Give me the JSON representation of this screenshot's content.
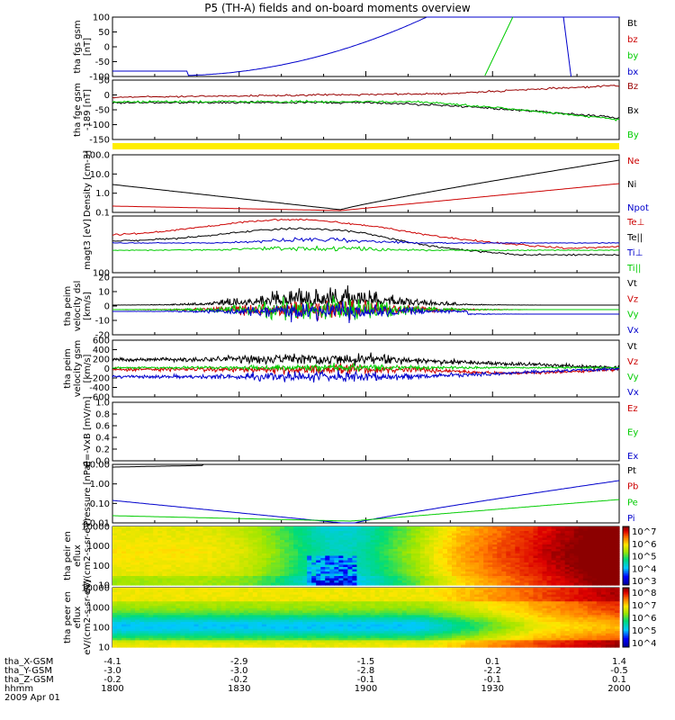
{
  "title": "P5 (TH-A) fields and on-board moments overview",
  "colors": {
    "black": "#000000",
    "red": "#cc0000",
    "green": "#00cc00",
    "blue": "#0000cc",
    "darkred": "#990000",
    "yellow": "#ffee00"
  },
  "chart_data": [
    {
      "type": "line",
      "ylabel": "tha fgs gsm [nT]",
      "yticks": [
        "100",
        "50",
        "0",
        "-50",
        "-100"
      ],
      "ylim": [
        -100,
        100
      ],
      "legend": [
        {
          "name": "Bt",
          "color": "black"
        },
        {
          "name": "bz",
          "color": "red"
        },
        {
          "name": "by",
          "color": "green"
        },
        {
          "name": "bx",
          "color": "blue"
        }
      ]
    },
    {
      "type": "line",
      "ylabel": "tha fge gsm -189 [nT]",
      "yticks": [
        "50",
        "0",
        "-50",
        "-100",
        "-150"
      ],
      "ylim": [
        -180,
        60
      ],
      "legend": [
        {
          "name": "Bz",
          "color": "darkred"
        },
        {
          "name": "Bx",
          "color": "black"
        },
        {
          "name": "By",
          "color": "green"
        }
      ]
    },
    {
      "type": "line",
      "ylabel": "Density [cm-3]",
      "yticks": [
        "100.0",
        "10.0",
        "1.0",
        "0.1"
      ],
      "log": true,
      "legend": [
        {
          "name": "Ne",
          "color": "red"
        },
        {
          "name": "Ni",
          "color": "black"
        },
        {
          "name": "Npot",
          "color": "blue"
        }
      ]
    },
    {
      "type": "line",
      "ylabel": "magt3 [eV]",
      "yticks": [
        "100"
      ],
      "log": true,
      "legend": [
        {
          "name": "Te⊥",
          "color": "red"
        },
        {
          "name": "Te||",
          "color": "black"
        },
        {
          "name": "Ti⊥",
          "color": "blue"
        },
        {
          "name": "Ti||",
          "color": "green"
        }
      ]
    },
    {
      "type": "line",
      "ylabel": "tha peim velocity dsl [km/s]",
      "yticks": [
        "20",
        "10",
        "0",
        "-10",
        "-20"
      ],
      "ylim": [
        -30,
        30
      ],
      "legend": [
        {
          "name": "Vt",
          "color": "black"
        },
        {
          "name": "Vz",
          "color": "red"
        },
        {
          "name": "Vy",
          "color": "green"
        },
        {
          "name": "Vx",
          "color": "blue"
        }
      ]
    },
    {
      "type": "line",
      "ylabel": "tha peim velocity gsm [km/s]",
      "yticks": [
        "600",
        "400",
        "200",
        "0",
        "-200",
        "-400",
        "-600"
      ],
      "ylim": [
        -600,
        600
      ],
      "legend": [
        {
          "name": "Vt",
          "color": "black"
        },
        {
          "name": "Vz",
          "color": "red"
        },
        {
          "name": "Vy",
          "color": "green"
        },
        {
          "name": "Vx",
          "color": "blue"
        }
      ]
    },
    {
      "type": "line",
      "ylabel": "E=-VxB [mV/m]",
      "yticks": [
        "1.0",
        "0.8",
        "0.6",
        "0.4",
        "0.2",
        "0.0"
      ],
      "ylim": [
        0,
        1
      ],
      "legend": [
        {
          "name": "Ez",
          "color": "red"
        },
        {
          "name": "Ey",
          "color": "green"
        },
        {
          "name": "Ex",
          "color": "blue"
        }
      ]
    },
    {
      "type": "line",
      "ylabel": "Pressure [nPa]",
      "yticks": [
        "10.00",
        "1.00",
        "0.10",
        "0.01"
      ],
      "log": true,
      "legend": [
        {
          "name": "Pt",
          "color": "black"
        },
        {
          "name": "Pb",
          "color": "red"
        },
        {
          "name": "Pe",
          "color": "green"
        },
        {
          "name": "Pi",
          "color": "blue"
        }
      ]
    },
    {
      "type": "heatmap",
      "ylabel": "tha peir en eflux eV/(cm2-s-sr-eV)",
      "yticks": [
        "10000",
        "1000",
        "100",
        "10"
      ],
      "log": true,
      "colorbar": [
        "10^7",
        "10^6",
        "10^5",
        "10^4",
        "10^3"
      ]
    },
    {
      "type": "heatmap",
      "ylabel": "tha peer en eflux eV/(cm2-s-sr-eV)",
      "yticks": [
        "10000",
        "1000",
        "100",
        "10"
      ],
      "log": true,
      "colorbar": [
        "10^8",
        "10^7",
        "10^6",
        "10^5",
        "10^4"
      ]
    }
  ],
  "footer": {
    "rows": [
      {
        "label": "tha_X-GSM",
        "values": [
          "-4.1",
          "-2.9",
          "-1.5",
          "0.1",
          "1.4"
        ]
      },
      {
        "label": "tha_Y-GSM",
        "values": [
          "-3.0",
          "-3.0",
          "-2.8",
          "-2.2",
          "-0.5"
        ]
      },
      {
        "label": "tha_Z-GSM",
        "values": [
          "-0.2",
          "-0.2",
          "-0.1",
          "-0.1",
          "0.1"
        ]
      },
      {
        "label": "hhmm",
        "values": [
          "1800",
          "1830",
          "1900",
          "1930",
          "2000"
        ]
      }
    ],
    "date": "2009 Apr 01"
  }
}
